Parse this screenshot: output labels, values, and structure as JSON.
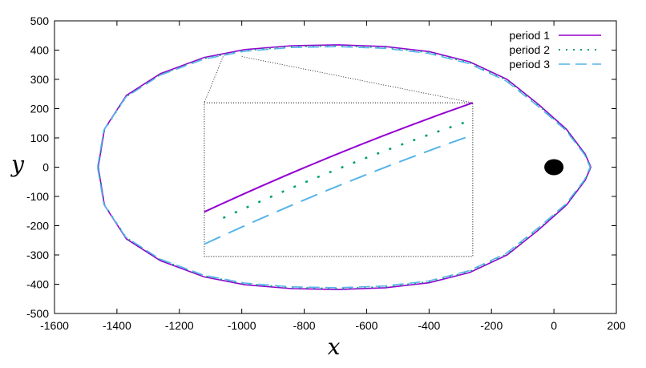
{
  "chart_data": {
    "type": "line",
    "title": "",
    "xlabel": "x",
    "ylabel": "y",
    "xlim": [
      -1600,
      200
    ],
    "ylim": [
      -500,
      500
    ],
    "x_ticks": [
      -1600,
      -1400,
      -1200,
      -1000,
      -800,
      -600,
      -400,
      -200,
      0,
      200
    ],
    "y_ticks": [
      -500,
      -400,
      -300,
      -200,
      -100,
      0,
      100,
      200,
      300,
      400,
      500
    ],
    "x_tick_labels": [
      "-1600",
      "-1400",
      "-1200",
      "-1000",
      "-800",
      "-600",
      "-400",
      "-200",
      "0",
      "200"
    ],
    "y_tick_labels": [
      "-500",
      "-400",
      "-300",
      "-200",
      "-100",
      "0",
      "100",
      "200",
      "300",
      "400",
      "500"
    ],
    "grid": false,
    "legend_position": "top-right",
    "series": [
      {
        "name": "period 1",
        "style": "solid",
        "color": "#9400d3",
        "points": [
          [
            -1460,
            0
          ],
          [
            -1440,
            130
          ],
          [
            -1370,
            245
          ],
          [
            -1260,
            320
          ],
          [
            -1120,
            375
          ],
          [
            -990,
            402
          ],
          [
            -840,
            415
          ],
          [
            -690,
            418
          ],
          [
            -540,
            412
          ],
          [
            -400,
            395
          ],
          [
            -270,
            360
          ],
          [
            -150,
            300
          ],
          [
            -50,
            215
          ],
          [
            40,
            130
          ],
          [
            100,
            45
          ],
          [
            118,
            0
          ],
          [
            100,
            -45
          ],
          [
            40,
            -130
          ],
          [
            -50,
            -215
          ],
          [
            -150,
            -300
          ],
          [
            -270,
            -360
          ],
          [
            -400,
            -395
          ],
          [
            -540,
            -412
          ],
          [
            -690,
            -418
          ],
          [
            -840,
            -415
          ],
          [
            -990,
            -402
          ],
          [
            -1120,
            -375
          ],
          [
            -1260,
            -320
          ],
          [
            -1370,
            -245
          ],
          [
            -1440,
            -130
          ],
          [
            -1460,
            0
          ]
        ]
      },
      {
        "name": "period 2",
        "style": "dotted",
        "color": "#009e73",
        "points": [
          [
            -1460,
            0
          ],
          [
            -1440,
            128
          ],
          [
            -1370,
            242
          ],
          [
            -1260,
            317
          ],
          [
            -1120,
            372
          ],
          [
            -990,
            399
          ],
          [
            -840,
            412
          ],
          [
            -690,
            415
          ],
          [
            -540,
            409
          ],
          [
            -400,
            392
          ],
          [
            -270,
            357
          ],
          [
            -150,
            297
          ],
          [
            -50,
            212
          ],
          [
            40,
            128
          ],
          [
            100,
            44
          ],
          [
            118,
            0
          ],
          [
            100,
            -44
          ],
          [
            40,
            -128
          ],
          [
            -50,
            -212
          ],
          [
            -150,
            -297
          ],
          [
            -270,
            -357
          ],
          [
            -400,
            -392
          ],
          [
            -540,
            -409
          ],
          [
            -690,
            -415
          ],
          [
            -840,
            -412
          ],
          [
            -990,
            -399
          ],
          [
            -1120,
            -372
          ],
          [
            -1260,
            -317
          ],
          [
            -1370,
            -242
          ],
          [
            -1440,
            -128
          ],
          [
            -1460,
            0
          ]
        ]
      },
      {
        "name": "period 3",
        "style": "dashed",
        "color": "#56b4e9",
        "points": [
          [
            -1462,
            0
          ],
          [
            -1442,
            126
          ],
          [
            -1372,
            239
          ],
          [
            -1262,
            314
          ],
          [
            -1122,
            369
          ],
          [
            -992,
            396
          ],
          [
            -842,
            409
          ],
          [
            -692,
            412
          ],
          [
            -542,
            406
          ],
          [
            -402,
            389
          ],
          [
            -272,
            354
          ],
          [
            -152,
            294
          ],
          [
            -52,
            209
          ],
          [
            38,
            126
          ],
          [
            98,
            43
          ],
          [
            116,
            0
          ],
          [
            98,
            -43
          ],
          [
            38,
            -126
          ],
          [
            -52,
            -209
          ],
          [
            -152,
            -294
          ],
          [
            -272,
            -354
          ],
          [
            -402,
            -389
          ],
          [
            -542,
            -406
          ],
          [
            -692,
            -412
          ],
          [
            -842,
            -409
          ],
          [
            -992,
            -396
          ],
          [
            -1122,
            -369
          ],
          [
            -1262,
            -314
          ],
          [
            -1372,
            -239
          ],
          [
            -1442,
            -126
          ],
          [
            -1462,
            0
          ]
        ]
      }
    ],
    "marker": {
      "shape": "filled-circle",
      "x": 0,
      "y": 0,
      "color": "#000000"
    },
    "inset": {
      "box_x_range": [
        -1120,
        -260
      ],
      "box_y_range": [
        -305,
        220
      ],
      "zoom_target_x_range": [
        -1060,
        -1000
      ],
      "zoom_target_y_range": [
        370,
        378
      ],
      "series": [
        {
          "name": "period 1",
          "style": "solid",
          "color": "#9400d3",
          "from_frac": [
            0.0,
            0.29
          ],
          "to_frac": [
            1.0,
            1.0
          ]
        },
        {
          "name": "period 2",
          "style": "dotted",
          "color": "#009e73",
          "from_frac": [
            0.07,
            0.25
          ],
          "to_frac": [
            1.0,
            0.89
          ]
        },
        {
          "name": "period 3",
          "style": "dashed",
          "color": "#56b4e9",
          "from_frac": [
            0.0,
            0.08
          ],
          "to_frac": [
            1.0,
            0.79
          ]
        }
      ]
    }
  }
}
